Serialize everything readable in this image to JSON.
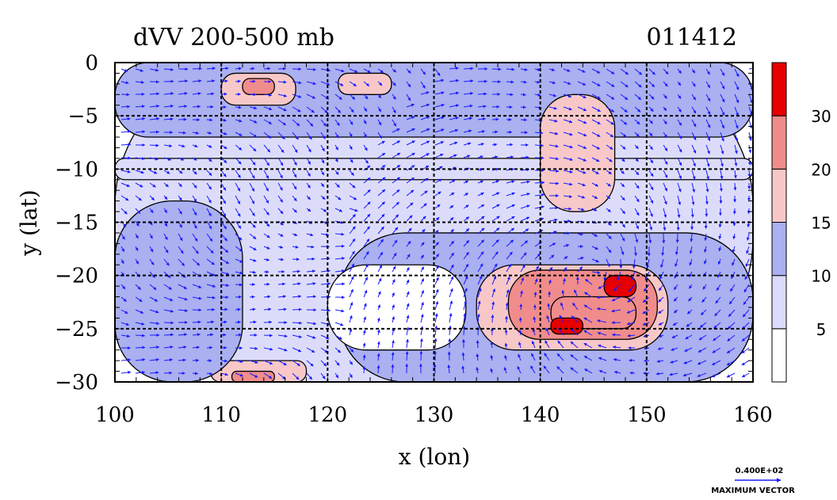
{
  "chart_data": {
    "type": "heatmap",
    "title": "dVV 200-500 mb",
    "timestamp": "011412",
    "xlabel": "x (lon)",
    "ylabel": "y (lat)",
    "xlim": [
      100,
      160
    ],
    "ylim": [
      -30,
      0
    ],
    "x_ticks": [
      100,
      110,
      120,
      130,
      140,
      150,
      160
    ],
    "y_ticks": [
      0,
      -5,
      -10,
      -15,
      -20,
      -25,
      -30
    ],
    "grid": true,
    "colorbar": {
      "levels": [
        0,
        5,
        10,
        15,
        20,
        30,
        35
      ],
      "tick_labels": [
        "5",
        "10",
        "15",
        "20",
        "30"
      ],
      "colors": [
        "#ffffff",
        "#dcdcfa",
        "#aab0f0",
        "#f8c8c8",
        "#f08c8c",
        "#e60000"
      ]
    },
    "vector_key": {
      "value_label": "0.400E+02",
      "caption": "MAXIMUM VECTOR"
    },
    "fields": [
      {
        "lon": 100,
        "lat": -30,
        "lon2": 160,
        "lat2": 0,
        "level": 1
      },
      {
        "lon": 100,
        "lat": 0,
        "lon2": 160,
        "lat2": -7,
        "level": 2
      },
      {
        "lon": 110,
        "lat": -1,
        "lon2": 117,
        "lat2": -4,
        "level": 3
      },
      {
        "lon": 112,
        "lat": -1.5,
        "lon2": 115,
        "lat2": -3,
        "level": 4
      },
      {
        "lon": 121,
        "lat": -1,
        "lon2": 126,
        "lat2": -3,
        "level": 3
      },
      {
        "lon": 121,
        "lat": -16,
        "lon2": 160,
        "lat2": -30,
        "level": 2
      },
      {
        "lon": 120,
        "lat": -19,
        "lon2": 133,
        "lat2": -27,
        "level": 0
      },
      {
        "lon": 100,
        "lat": -9,
        "lon2": 160,
        "lat2": -11,
        "level": 1
      },
      {
        "lon": 134,
        "lat": -19,
        "lon2": 152,
        "lat2": -27,
        "level": 3
      },
      {
        "lon": 137,
        "lat": -19.5,
        "lon2": 151,
        "lat2": -26,
        "level": 4
      },
      {
        "lon": 141,
        "lat": -22,
        "lon2": 149,
        "lat2": -25,
        "level": 4
      },
      {
        "lon": 146,
        "lat": -20,
        "lon2": 149,
        "lat2": -22,
        "level": 5
      },
      {
        "lon": 141,
        "lat": -24,
        "lon2": 144,
        "lat2": -25.5,
        "level": 5
      },
      {
        "lon": 109,
        "lat": -28,
        "lon2": 118,
        "lat2": -30,
        "level": 3
      },
      {
        "lon": 111,
        "lat": -29,
        "lon2": 115,
        "lat2": -30,
        "level": 4
      },
      {
        "lon": 140,
        "lat": -3,
        "lon2": 147,
        "lat2": -14,
        "level": 3
      },
      {
        "lon": 100,
        "lat": -13,
        "lon2": 112,
        "lat2": -30,
        "level": 2
      }
    ]
  }
}
